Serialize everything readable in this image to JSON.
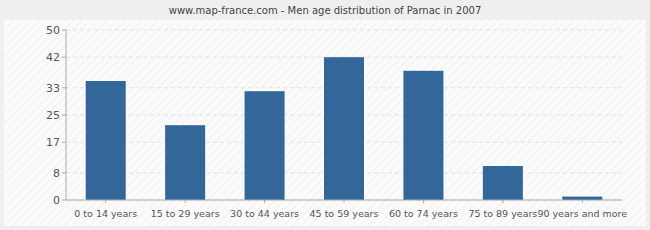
{
  "chart_data": {
    "type": "bar",
    "title": "www.map-france.com - Men age distribution of Parnac in 2007",
    "categories": [
      "0 to 14 years",
      "15 to 29 years",
      "30 to 44 years",
      "45 to 59 years",
      "60 to 74 years",
      "75 to 89 years",
      "90 years and more"
    ],
    "values": [
      35,
      22,
      32,
      42,
      38,
      10,
      1
    ],
    "color": "#336699",
    "ylim": [
      0,
      50
    ],
    "yticks": [
      0,
      8,
      17,
      25,
      33,
      42,
      50
    ],
    "grid": true
  }
}
